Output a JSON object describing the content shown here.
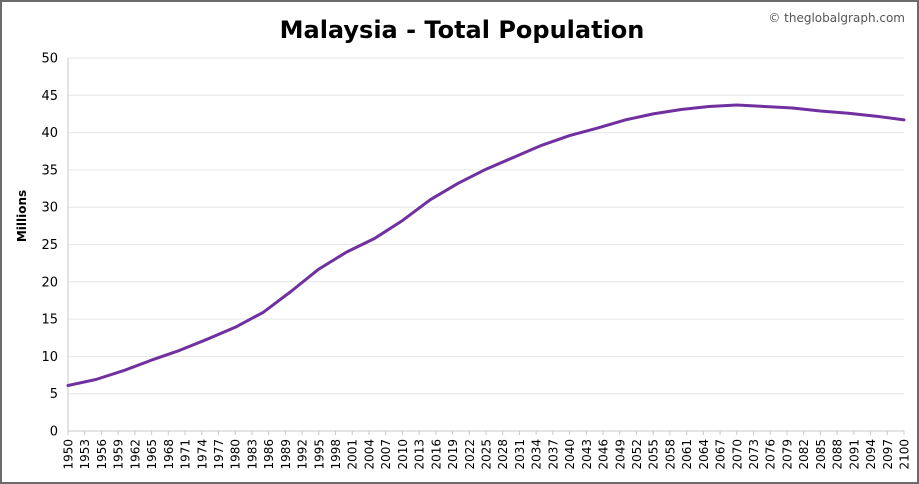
{
  "chart_data": {
    "type": "line",
    "title": "Malaysia - Total Population",
    "credit": "© theglobalgraph.com",
    "ylabel": "Millions",
    "xlabel": "",
    "ylim": [
      0,
      50
    ],
    "yticks": [
      0,
      5,
      10,
      15,
      20,
      25,
      30,
      35,
      40,
      45,
      50
    ],
    "xlim": [
      1950,
      2100
    ],
    "xtick_labels": [
      "1950",
      "1953",
      "1956",
      "1959",
      "1962",
      "1965",
      "1968",
      "1971",
      "1974",
      "1977",
      "1980",
      "1983",
      "1986",
      "1989",
      "1992",
      "1995",
      "1998",
      "2001",
      "2004",
      "2007",
      "2010",
      "2013",
      "2016",
      "2019",
      "2022",
      "2025",
      "2028",
      "2031",
      "2034",
      "2037",
      "2040",
      "2043",
      "2046",
      "2049",
      "2052",
      "2055",
      "2058",
      "2061",
      "2064",
      "2067",
      "2070",
      "2073",
      "2076",
      "2079",
      "2082",
      "2085",
      "2088",
      "2091",
      "2094",
      "2097",
      "2100"
    ],
    "grid": true,
    "series": [
      {
        "color": "#7030a0",
        "x": [
          1950,
          1955,
          1960,
          1965,
          1970,
          1975,
          1980,
          1985,
          1990,
          1995,
          2000,
          2005,
          2010,
          2015,
          2020,
          2025,
          2030,
          2035,
          2040,
          2045,
          2050,
          2055,
          2060,
          2065,
          2070,
          2075,
          2080,
          2085,
          2090,
          2095,
          2100
        ],
        "y": [
          6.1,
          6.9,
          8.1,
          9.5,
          10.8,
          12.3,
          13.9,
          15.9,
          18.7,
          21.7,
          24.0,
          25.8,
          28.2,
          31.0,
          33.2,
          35.1,
          36.7,
          38.3,
          39.6,
          40.6,
          41.7,
          42.5,
          43.1,
          43.5,
          43.7,
          43.5,
          43.3,
          42.9,
          42.6,
          42.2,
          41.7
        ]
      }
    ]
  }
}
